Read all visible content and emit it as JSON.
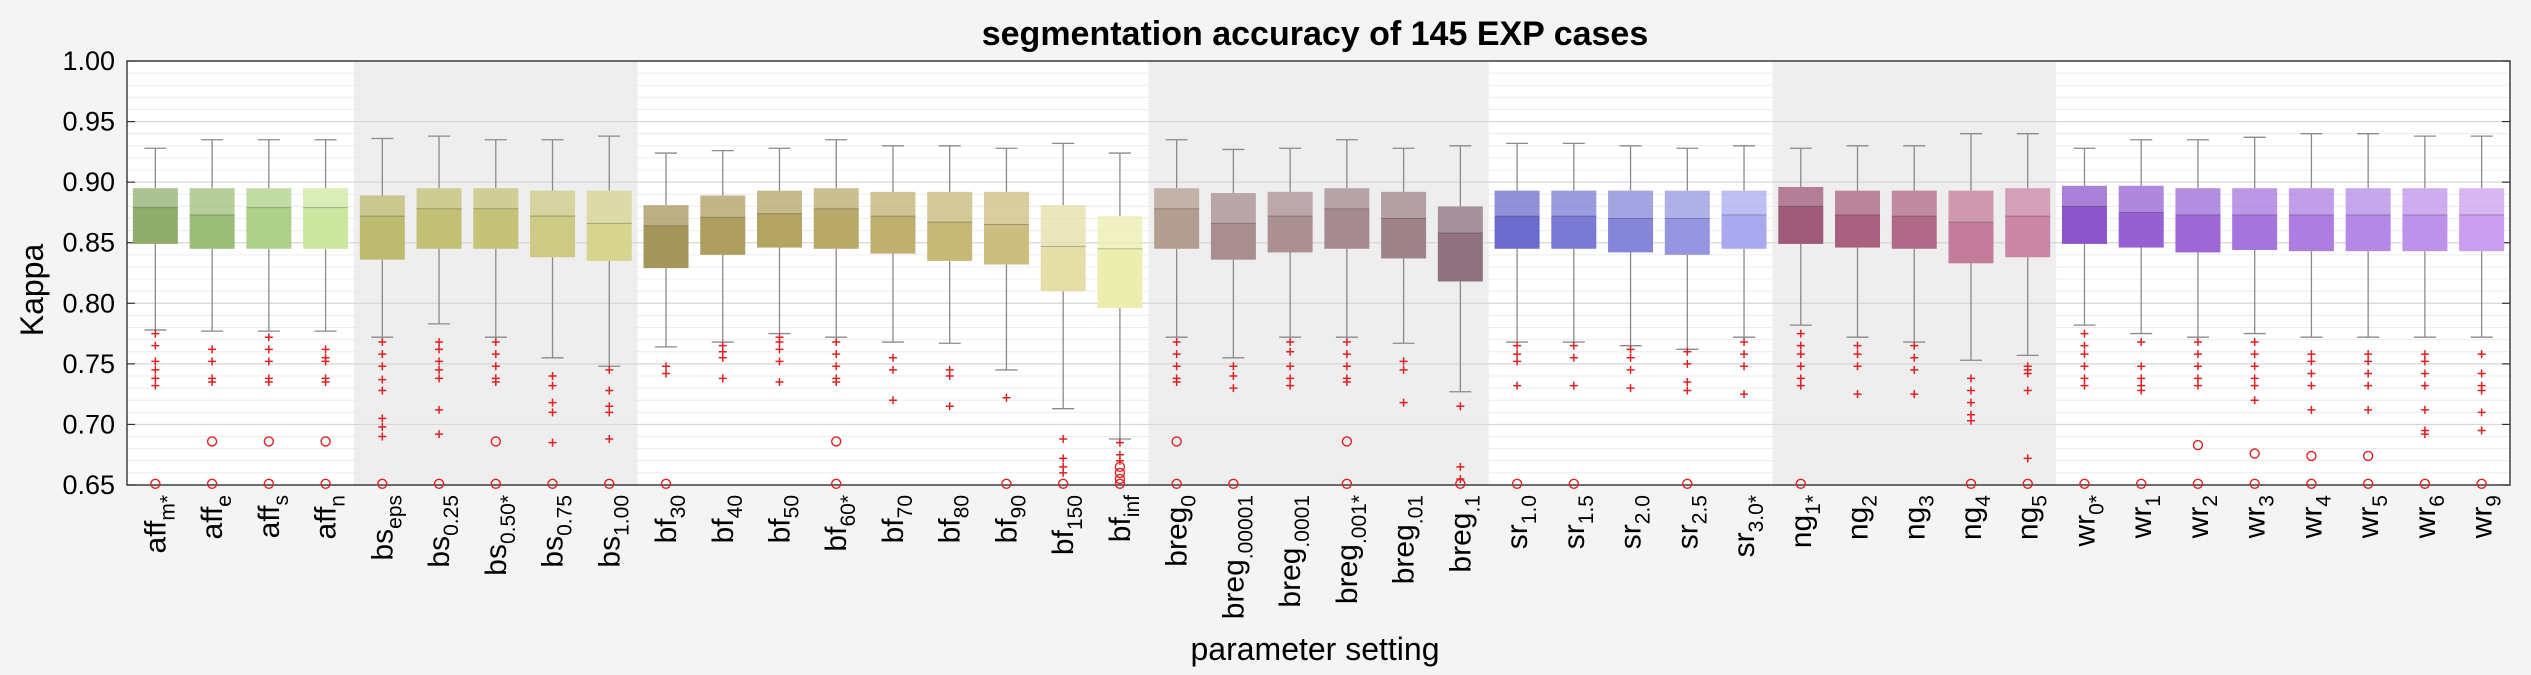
{
  "chart_data": {
    "type": "box",
    "title": "segmentation accuracy of 145 EXP cases",
    "xlabel": "parameter setting",
    "ylabel": "Kappa",
    "ylim": [
      0.65,
      1.0
    ],
    "yticks": [
      "0.65",
      "0.70",
      "0.75",
      "0.80",
      "0.85",
      "0.90",
      "0.95",
      "1.00"
    ],
    "grid": true,
    "shaded_groups": [
      [
        4,
        8
      ],
      [
        18,
        23
      ],
      [
        29,
        33
      ]
    ],
    "boxes": [
      {
        "base": "aff",
        "sub": "m*",
        "color": "#8fad6c",
        "whisker_low": 0.778,
        "q1": 0.849,
        "median": 0.879,
        "q3": 0.895,
        "whisker_high": 0.928,
        "plus": [
          0.775,
          0.765,
          0.752,
          0.745,
          0.738,
          0.732
        ],
        "circles": [
          0.651
        ]
      },
      {
        "base": "aff",
        "sub": "e",
        "color": "#9cbd78",
        "whisker_low": 0.777,
        "q1": 0.845,
        "median": 0.873,
        "q3": 0.895,
        "whisker_high": 0.935,
        "plus": [
          0.762,
          0.752,
          0.738,
          0.735
        ],
        "circles": [
          0.686,
          0.651
        ]
      },
      {
        "base": "aff",
        "sub": "s",
        "color": "#aed088",
        "whisker_low": 0.777,
        "q1": 0.845,
        "median": 0.879,
        "q3": 0.895,
        "whisker_high": 0.935,
        "plus": [
          0.772,
          0.762,
          0.752,
          0.738,
          0.735
        ],
        "circles": [
          0.686,
          0.651
        ]
      },
      {
        "base": "aff",
        "sub": "n",
        "color": "#cce8a0",
        "whisker_low": 0.777,
        "q1": 0.845,
        "median": 0.879,
        "q3": 0.895,
        "whisker_high": 0.935,
        "plus": [
          0.762,
          0.755,
          0.752,
          0.738,
          0.735
        ],
        "circles": [
          0.686,
          0.651
        ]
      },
      {
        "base": "bs",
        "sub": "eps",
        "color": "#bdbb6f",
        "whisker_low": 0.772,
        "q1": 0.836,
        "median": 0.872,
        "q3": 0.889,
        "whisker_high": 0.936,
        "plus": [
          0.768,
          0.758,
          0.748,
          0.737,
          0.728,
          0.705,
          0.698,
          0.69
        ],
        "circles": [
          0.651
        ]
      },
      {
        "base": "bs",
        "sub": "0.25",
        "color": "#c2c074",
        "whisker_low": 0.783,
        "q1": 0.845,
        "median": 0.878,
        "q3": 0.895,
        "whisker_high": 0.938,
        "plus": [
          0.768,
          0.762,
          0.752,
          0.745,
          0.738,
          0.712,
          0.692
        ],
        "circles": [
          0.651
        ]
      },
      {
        "base": "bs",
        "sub": "0.50*",
        "color": "#c5c37a",
        "whisker_low": 0.772,
        "q1": 0.845,
        "median": 0.878,
        "q3": 0.895,
        "whisker_high": 0.935,
        "plus": [
          0.768,
          0.758,
          0.748,
          0.738,
          0.735
        ],
        "circles": [
          0.686,
          0.651
        ]
      },
      {
        "base": "bs",
        "sub": "0.75",
        "color": "#ccca83",
        "whisker_low": 0.755,
        "q1": 0.838,
        "median": 0.872,
        "q3": 0.893,
        "whisker_high": 0.935,
        "plus": [
          0.74,
          0.732,
          0.718,
          0.71,
          0.685
        ],
        "circles": [
          0.651
        ]
      },
      {
        "base": "bs",
        "sub": "1.00",
        "color": "#d6d48f",
        "whisker_low": 0.748,
        "q1": 0.835,
        "median": 0.866,
        "q3": 0.893,
        "whisker_high": 0.938,
        "plus": [
          0.745,
          0.728,
          0.715,
          0.71,
          0.688
        ],
        "circles": [
          0.651
        ]
      },
      {
        "base": "bf",
        "sub": "30",
        "color": "#a4955a",
        "whisker_low": 0.764,
        "q1": 0.829,
        "median": 0.864,
        "q3": 0.881,
        "whisker_high": 0.924,
        "plus": [
          0.748,
          0.742
        ],
        "circles": [
          0.651
        ]
      },
      {
        "base": "bf",
        "sub": "40",
        "color": "#ae9e60",
        "whisker_low": 0.768,
        "q1": 0.84,
        "median": 0.871,
        "q3": 0.889,
        "whisker_high": 0.926,
        "plus": [
          0.765,
          0.76,
          0.755,
          0.738
        ],
        "circles": []
      },
      {
        "base": "bf",
        "sub": "50",
        "color": "#b3a463",
        "whisker_low": 0.775,
        "q1": 0.846,
        "median": 0.874,
        "q3": 0.893,
        "whisker_high": 0.928,
        "plus": [
          0.772,
          0.768,
          0.762,
          0.752,
          0.735
        ],
        "circles": []
      },
      {
        "base": "bf",
        "sub": "60*",
        "color": "#b8a968",
        "whisker_low": 0.772,
        "q1": 0.845,
        "median": 0.878,
        "q3": 0.895,
        "whisker_high": 0.935,
        "plus": [
          0.768,
          0.758,
          0.748,
          0.738,
          0.735
        ],
        "circles": [
          0.686,
          0.651
        ]
      },
      {
        "base": "bf",
        "sub": "70",
        "color": "#bfb06f",
        "whisker_low": 0.768,
        "q1": 0.841,
        "median": 0.872,
        "q3": 0.892,
        "whisker_high": 0.93,
        "plus": [
          0.755,
          0.745,
          0.72
        ],
        "circles": []
      },
      {
        "base": "bf",
        "sub": "80",
        "color": "#c6b877",
        "whisker_low": 0.767,
        "q1": 0.835,
        "median": 0.867,
        "q3": 0.892,
        "whisker_high": 0.93,
        "plus": [
          0.745,
          0.74,
          0.715
        ],
        "circles": []
      },
      {
        "base": "bf",
        "sub": "90",
        "color": "#ccbe7f",
        "whisker_low": 0.745,
        "q1": 0.832,
        "median": 0.865,
        "q3": 0.892,
        "whisker_high": 0.928,
        "plus": [
          0.722
        ],
        "circles": [
          0.651
        ]
      },
      {
        "base": "bf",
        "sub": "150",
        "color": "#e6dea7",
        "whisker_low": 0.713,
        "q1": 0.81,
        "median": 0.847,
        "q3": 0.881,
        "whisker_high": 0.932,
        "plus": [
          0.688,
          0.672,
          0.665,
          0.66
        ],
        "circles": [
          0.651
        ]
      },
      {
        "base": "bf",
        "sub": "inf",
        "color": "#eceeb0",
        "whisker_low": 0.688,
        "q1": 0.796,
        "median": 0.845,
        "q3": 0.872,
        "whisker_high": 0.924,
        "plus": [
          0.685,
          0.675,
          0.67
        ],
        "circles": [
          0.665,
          0.66,
          0.655,
          0.651
        ]
      },
      {
        "base": "breg",
        "sub": "0",
        "color": "#b39d90",
        "whisker_low": 0.772,
        "q1": 0.845,
        "median": 0.878,
        "q3": 0.895,
        "whisker_high": 0.935,
        "plus": [
          0.768,
          0.758,
          0.748,
          0.738,
          0.735
        ],
        "circles": [
          0.686,
          0.651
        ]
      },
      {
        "base": "breg",
        "sub": ".00001",
        "color": "#a88e90",
        "whisker_low": 0.755,
        "q1": 0.836,
        "median": 0.866,
        "q3": 0.891,
        "whisker_high": 0.927,
        "plus": [
          0.748,
          0.74,
          0.73
        ],
        "circles": [
          0.651
        ]
      },
      {
        "base": "breg",
        "sub": ".0001",
        "color": "#ab9093",
        "whisker_low": 0.772,
        "q1": 0.842,
        "median": 0.872,
        "q3": 0.892,
        "whisker_high": 0.928,
        "plus": [
          0.768,
          0.76,
          0.748,
          0.738,
          0.732
        ],
        "circles": []
      },
      {
        "base": "breg",
        "sub": ".001*",
        "color": "#a58a8f",
        "whisker_low": 0.772,
        "q1": 0.845,
        "median": 0.878,
        "q3": 0.895,
        "whisker_high": 0.935,
        "plus": [
          0.768,
          0.758,
          0.748,
          0.738,
          0.735
        ],
        "circles": [
          0.686,
          0.651
        ]
      },
      {
        "base": "breg",
        "sub": ".01",
        "color": "#9f838a",
        "whisker_low": 0.767,
        "q1": 0.837,
        "median": 0.87,
        "q3": 0.892,
        "whisker_high": 0.928,
        "plus": [
          0.752,
          0.745,
          0.718
        ],
        "circles": []
      },
      {
        "base": "breg",
        "sub": ".1",
        "color": "#8f727e",
        "whisker_low": 0.727,
        "q1": 0.818,
        "median": 0.858,
        "q3": 0.88,
        "whisker_high": 0.93,
        "plus": [
          0.715,
          0.665,
          0.655
        ],
        "circles": [
          0.651
        ]
      },
      {
        "base": "sr",
        "sub": "1.0",
        "color": "#6c6cce",
        "whisker_low": 0.768,
        "q1": 0.845,
        "median": 0.872,
        "q3": 0.893,
        "whisker_high": 0.932,
        "plus": [
          0.765,
          0.758,
          0.752,
          0.732
        ],
        "circles": [
          0.651
        ]
      },
      {
        "base": "sr",
        "sub": "1.5",
        "color": "#7a7ad6",
        "whisker_low": 0.768,
        "q1": 0.845,
        "median": 0.872,
        "q3": 0.893,
        "whisker_high": 0.932,
        "plus": [
          0.765,
          0.755,
          0.732
        ],
        "circles": [
          0.651
        ]
      },
      {
        "base": "sr",
        "sub": "2.0",
        "color": "#8585da",
        "whisker_low": 0.765,
        "q1": 0.842,
        "median": 0.87,
        "q3": 0.893,
        "whisker_high": 0.93,
        "plus": [
          0.762,
          0.755,
          0.745,
          0.73
        ],
        "circles": []
      },
      {
        "base": "sr",
        "sub": "2.5",
        "color": "#9595e2",
        "whisker_low": 0.762,
        "q1": 0.84,
        "median": 0.87,
        "q3": 0.893,
        "whisker_high": 0.928,
        "plus": [
          0.76,
          0.75,
          0.735,
          0.728
        ],
        "circles": [
          0.651
        ]
      },
      {
        "base": "sr",
        "sub": "3.0*",
        "color": "#a9a9f0",
        "whisker_low": 0.772,
        "q1": 0.845,
        "median": 0.873,
        "q3": 0.893,
        "whisker_high": 0.93,
        "plus": [
          0.768,
          0.758,
          0.748,
          0.725
        ],
        "circles": []
      },
      {
        "base": "ng",
        "sub": "1*",
        "color": "#9e5a78",
        "whisker_low": 0.782,
        "q1": 0.849,
        "median": 0.88,
        "q3": 0.896,
        "whisker_high": 0.928,
        "plus": [
          0.775,
          0.765,
          0.758,
          0.748,
          0.738,
          0.732
        ],
        "circles": [
          0.651
        ]
      },
      {
        "base": "ng",
        "sub": "2",
        "color": "#a8627f",
        "whisker_low": 0.772,
        "q1": 0.846,
        "median": 0.873,
        "q3": 0.893,
        "whisker_high": 0.93,
        "plus": [
          0.765,
          0.758,
          0.748,
          0.725
        ],
        "circles": []
      },
      {
        "base": "ng",
        "sub": "3",
        "color": "#b06a87",
        "whisker_low": 0.768,
        "q1": 0.845,
        "median": 0.872,
        "q3": 0.893,
        "whisker_high": 0.93,
        "plus": [
          0.765,
          0.755,
          0.745,
          0.725
        ],
        "circles": []
      },
      {
        "base": "ng",
        "sub": "4",
        "color": "#c37c9a",
        "whisker_low": 0.753,
        "q1": 0.833,
        "median": 0.867,
        "q3": 0.893,
        "whisker_high": 0.94,
        "plus": [
          0.738,
          0.728,
          0.718,
          0.708,
          0.703
        ],
        "circles": [
          0.651
        ]
      },
      {
        "base": "ng",
        "sub": "5",
        "color": "#ca86a4",
        "whisker_low": 0.757,
        "q1": 0.838,
        "median": 0.872,
        "q3": 0.895,
        "whisker_high": 0.94,
        "plus": [
          0.748,
          0.745,
          0.742,
          0.728,
          0.672
        ],
        "circles": [
          0.651
        ]
      },
      {
        "base": "wr",
        "sub": "0*",
        "color": "#8d55cc",
        "whisker_low": 0.782,
        "q1": 0.849,
        "median": 0.88,
        "q3": 0.897,
        "whisker_high": 0.928,
        "plus": [
          0.775,
          0.765,
          0.758,
          0.748,
          0.738,
          0.732
        ],
        "circles": [
          0.651
        ]
      },
      {
        "base": "wr",
        "sub": "1",
        "color": "#9460d2",
        "whisker_low": 0.775,
        "q1": 0.846,
        "median": 0.875,
        "q3": 0.897,
        "whisker_high": 0.935,
        "plus": [
          0.768,
          0.748,
          0.738,
          0.732,
          0.728
        ],
        "circles": [
          0.651
        ]
      },
      {
        "base": "wr",
        "sub": "2",
        "color": "#9b68d6",
        "whisker_low": 0.772,
        "q1": 0.842,
        "median": 0.873,
        "q3": 0.895,
        "whisker_high": 0.935,
        "plus": [
          0.768,
          0.758,
          0.748,
          0.738,
          0.732
        ],
        "circles": [
          0.683,
          0.651
        ]
      },
      {
        "base": "wr",
        "sub": "3",
        "color": "#a574dc",
        "whisker_low": 0.775,
        "q1": 0.844,
        "median": 0.873,
        "q3": 0.895,
        "whisker_high": 0.937,
        "plus": [
          0.768,
          0.758,
          0.748,
          0.738,
          0.732,
          0.72
        ],
        "circles": [
          0.676,
          0.651
        ]
      },
      {
        "base": "wr",
        "sub": "4",
        "color": "#ad7ee2",
        "whisker_low": 0.772,
        "q1": 0.843,
        "median": 0.873,
        "q3": 0.895,
        "whisker_high": 0.94,
        "plus": [
          0.758,
          0.752,
          0.742,
          0.732,
          0.712
        ],
        "circles": [
          0.674,
          0.651
        ]
      },
      {
        "base": "wr",
        "sub": "5",
        "color": "#b388e6",
        "whisker_low": 0.772,
        "q1": 0.843,
        "median": 0.873,
        "q3": 0.895,
        "whisker_high": 0.94,
        "plus": [
          0.758,
          0.752,
          0.742,
          0.732,
          0.712
        ],
        "circles": [
          0.674,
          0.651
        ]
      },
      {
        "base": "wr",
        "sub": "6",
        "color": "#bd92ea",
        "whisker_low": 0.772,
        "q1": 0.843,
        "median": 0.873,
        "q3": 0.895,
        "whisker_high": 0.938,
        "plus": [
          0.758,
          0.752,
          0.742,
          0.732,
          0.712,
          0.695,
          0.692
        ],
        "circles": [
          0.651
        ]
      },
      {
        "base": "wr",
        "sub": "9",
        "color": "#c99eee",
        "whisker_low": 0.772,
        "q1": 0.843,
        "median": 0.873,
        "q3": 0.895,
        "whisker_high": 0.938,
        "plus": [
          0.758,
          0.742,
          0.732,
          0.728,
          0.71,
          0.695
        ],
        "circles": [
          0.651
        ]
      }
    ]
  }
}
